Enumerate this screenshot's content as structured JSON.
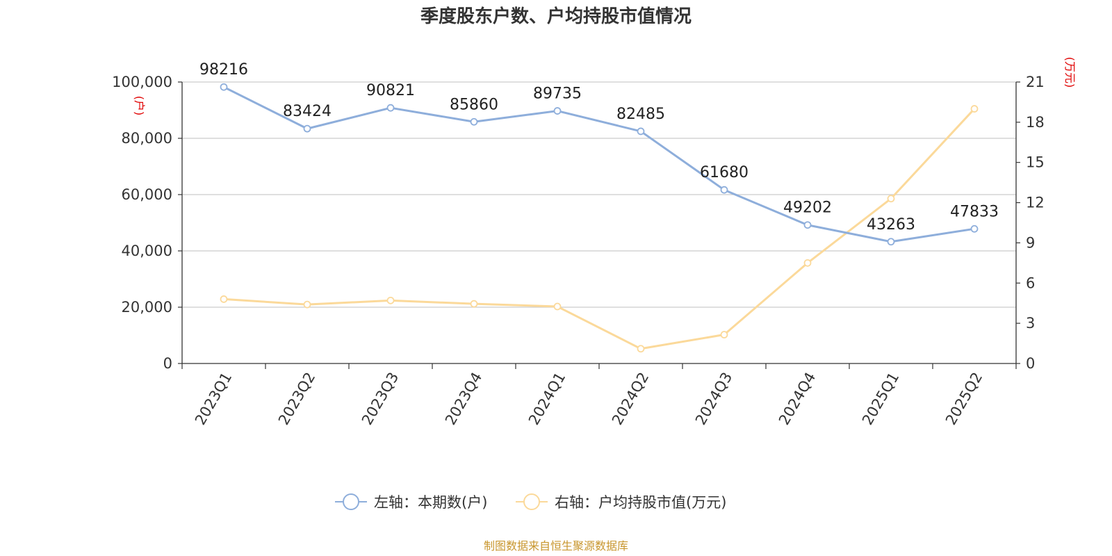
{
  "chart_data": {
    "type": "line",
    "title": "季度股东户数、户均持股市值情况",
    "categories": [
      "2023Q1",
      "2023Q2",
      "2023Q3",
      "2023Q4",
      "2024Q1",
      "2024Q2",
      "2024Q3",
      "2024Q4",
      "2025Q1",
      "2025Q2"
    ],
    "y_left": {
      "unit": "(户)",
      "range": [
        0,
        100000
      ],
      "ticks": [
        "0",
        "20,000",
        "40,000",
        "60,000",
        "80,000",
        "100,000"
      ]
    },
    "y_right": {
      "unit": "(万元)",
      "range": [
        0,
        21
      ],
      "ticks": [
        "0",
        "3",
        "6",
        "9",
        "12",
        "15",
        "18",
        "21"
      ]
    },
    "series": [
      {
        "name": "左轴：本期数(户)",
        "axis": "left",
        "color": "#8eaedb",
        "values": [
          98216,
          83424,
          90821,
          85860,
          89735,
          82485,
          61680,
          49202,
          43263,
          47833
        ],
        "labels": [
          "98216",
          "83424",
          "90821",
          "85860",
          "89735",
          "82485",
          "61680",
          "49202",
          "43263",
          "47833"
        ]
      },
      {
        "name": "右轴：户均持股市值(万元)",
        "axis": "right",
        "color": "#fbd99a",
        "values": [
          4.8,
          4.4,
          4.7,
          4.45,
          4.25,
          1.1,
          2.15,
          7.5,
          12.3,
          19.0
        ]
      }
    ],
    "grid": true,
    "legend_position": "bottom"
  },
  "source": "制图数据来自恒生聚源数据库"
}
